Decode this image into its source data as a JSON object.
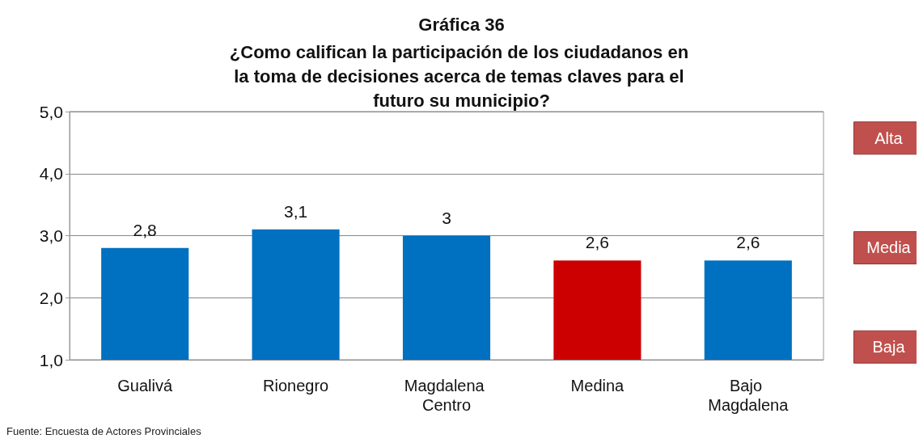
{
  "chart_data": {
    "type": "bar",
    "title": "Gráfica 36",
    "subtitle": "¿Como califican la participación de los ciudadanos en la toma de decisiones acerca de temas claves para el futuro su municipio?",
    "categories": [
      "Gualivá",
      "Rionegro",
      "Magdalena Centro",
      "Medina",
      "Bajo Magdalena"
    ],
    "values": [
      2.8,
      3.1,
      3,
      2.6,
      2.6
    ],
    "colors": [
      "#0070c0",
      "#0070c0",
      "#0070c0",
      "#cc0000",
      "#0070c0"
    ],
    "value_labels": [
      "2,8",
      "3,1",
      "3",
      "2,6",
      "2,6"
    ],
    "ylim": [
      1,
      5
    ],
    "yticks": [
      {
        "value": 1,
        "label": "1,0"
      },
      {
        "value": 2,
        "label": "2,0"
      },
      {
        "value": 3,
        "label": "3,0"
      },
      {
        "value": 4,
        "label": "4,0"
      },
      {
        "value": 5,
        "label": "5,0"
      }
    ],
    "grid": "y",
    "annotations": [
      "Alta",
      "Media",
      "Baja",
      "Fuente: Encuesta de Actores Provinciales"
    ]
  }
}
